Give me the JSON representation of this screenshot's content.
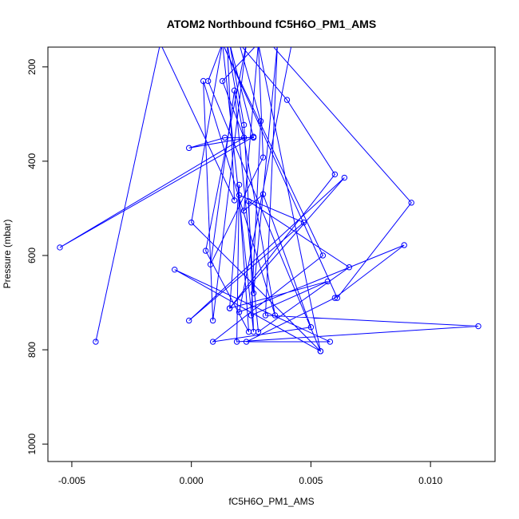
{
  "chart_data": {
    "type": "line",
    "title": "ATOM2 Northbound fC5H6O_PM1_AMS",
    "xlabel": "fC5H6O_PM1_AMS",
    "ylabel": "Pressure (mbar)",
    "xlim": [
      -0.006,
      0.0127
    ],
    "ylim": [
      1037,
      158
    ],
    "y_reversed": true,
    "xticks": [
      -0.005,
      0.0,
      0.005,
      0.01
    ],
    "xtick_labels": [
      "-0.005",
      "0.000",
      "0.005",
      "0.010"
    ],
    "yticks": [
      200,
      400,
      600,
      800,
      1000
    ],
    "ytick_labels": [
      "200",
      "400",
      "600",
      "800",
      "1000"
    ],
    "grid": false,
    "series": [
      {
        "color": "#0000ff",
        "marker": "open-circle",
        "points": [
          {
            "x": -0.004,
            "y": 783
          },
          {
            "x": -0.0013,
            "y": 150
          },
          {
            "x": 0.0018,
            "y": 483
          },
          {
            "x": 0.0015,
            "y": 150
          },
          {
            "x": 0.0035,
            "y": 727
          },
          {
            "x": 0.0005,
            "y": 230
          },
          {
            "x": 0.0009,
            "y": 738
          },
          {
            "x": 0.0023,
            "y": 150
          },
          {
            "x": 0.0006,
            "y": 590
          },
          {
            "x": 0.0024,
            "y": 762
          },
          {
            "x": 0.002,
            "y": 472
          },
          {
            "x": 0.0047,
            "y": 530
          },
          {
            "x": -0.0001,
            "y": 738
          },
          {
            "x": 0.0064,
            "y": 435
          },
          {
            "x": 0.0016,
            "y": 712
          },
          {
            "x": 0.006,
            "y": 428
          },
          {
            "x": 0.004,
            "y": 270
          },
          {
            "x": 0.002,
            "y": 150
          },
          {
            "x": 0.0029,
            "y": 315
          },
          {
            "x": 0.0025,
            "y": 727
          },
          {
            "x": 0.0057,
            "y": 655
          },
          {
            "x": 0.0016,
            "y": 712
          },
          {
            "x": 0.002,
            "y": 450
          },
          {
            "x": 0.0019,
            "y": 783
          },
          {
            "x": 0.012,
            "y": 750
          },
          {
            "x": 0.0031,
            "y": 727
          },
          {
            "x": 0.0036,
            "y": 150
          },
          {
            "x": 0.0026,
            "y": 680
          },
          {
            "x": 0.0022,
            "y": 323
          },
          {
            "x": 0.0016,
            "y": 150
          },
          {
            "x": 0.0026,
            "y": 350
          },
          {
            "x": 0.0014,
            "y": 350
          },
          {
            "x": -0.0001,
            "y": 372
          },
          {
            "x": 0.0026,
            "y": 348
          },
          {
            "x": -0.0055,
            "y": 583
          },
          {
            "x": 0.0022,
            "y": 350
          },
          {
            "x": 0.0013,
            "y": 230
          },
          {
            "x": 0.0028,
            "y": 150
          },
          {
            "x": 0.003,
            "y": 392
          },
          {
            "x": 0.0008,
            "y": 619
          },
          {
            "x": 0.0018,
            "y": 250
          },
          {
            "x": 0.0028,
            "y": 762
          },
          {
            "x": 0.0066,
            "y": 625
          },
          {
            "x": 0.0024,
            "y": 485
          },
          {
            "x": 0.0026,
            "y": 762
          },
          {
            "x": 0.0013,
            "y": 150
          },
          {
            "x": 0.0055,
            "y": 600
          },
          {
            "x": 0.0009,
            "y": 783
          },
          {
            "x": 0.005,
            "y": 752
          },
          {
            "x": 0.003,
            "y": 470
          },
          {
            "x": 0.0022,
            "y": 505
          },
          {
            "x": 0.0028,
            "y": 150
          },
          {
            "x": 0.0054,
            "y": 803
          },
          {
            "x": -0.0007,
            "y": 630
          },
          {
            "x": 0.0058,
            "y": 783
          },
          {
            "x": 0.0023,
            "y": 783
          },
          {
            "x": 0.006,
            "y": 690
          },
          {
            "x": 0.0089,
            "y": 578
          },
          {
            "x": 0.002,
            "y": 720
          },
          {
            "x": 0.0042,
            "y": 150
          },
          {
            "x": 0.0033,
            "y": 150
          },
          {
            "x": 0.0092,
            "y": 488
          },
          {
            "x": 0.0061,
            "y": 690
          },
          {
            "x": 0.0013,
            "y": 150
          },
          {
            "x": 0.0,
            "y": 530
          },
          {
            "x": 0.0054,
            "y": 803
          },
          {
            "x": 0.0007,
            "y": 230
          },
          {
            "x": 0.0013,
            "y": 150
          }
        ]
      }
    ]
  }
}
